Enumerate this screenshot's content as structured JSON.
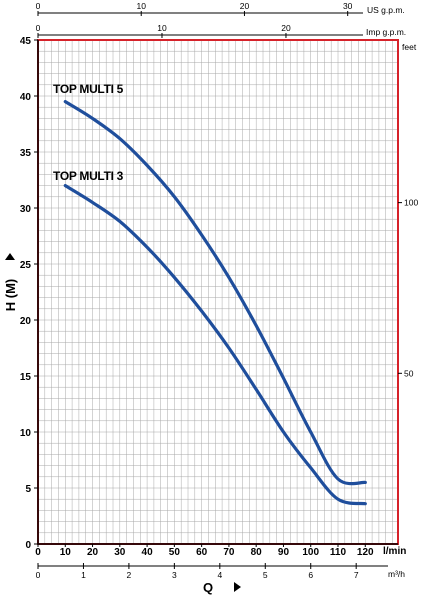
{
  "chart_data": {
    "type": "line",
    "x": {
      "unit": "l/min",
      "min": 0,
      "max": 120,
      "ticks": [
        0,
        10,
        20,
        30,
        40,
        50,
        60,
        70,
        80,
        90,
        100,
        110,
        120
      ]
    },
    "y": {
      "unit": "H (M)",
      "min": 0,
      "max": 45,
      "ticks": [
        0,
        5,
        10,
        15,
        20,
        25,
        30,
        35,
        40,
        45
      ]
    },
    "ylabel": "H (M)",
    "xlabel": "Q",
    "secondary_axes": {
      "top_us": {
        "unit": "US g.p.m.",
        "ticks": [
          0,
          10,
          20,
          30
        ]
      },
      "top_imp": {
        "unit": "Imp g.p.m.",
        "ticks": [
          0,
          10,
          20
        ]
      },
      "bottom_m3h": {
        "unit": "m³/h",
        "ticks": [
          0,
          1,
          2,
          3,
          4,
          5,
          6,
          7
        ]
      },
      "right_feet": {
        "unit": "feet",
        "ticks": [
          50,
          100
        ]
      }
    },
    "grid": true,
    "series": [
      {
        "name": "TOP MULTI 5",
        "color": "#1f4e9c",
        "points": [
          [
            10,
            39.5
          ],
          [
            20,
            38
          ],
          [
            30,
            36.2
          ],
          [
            40,
            33.8
          ],
          [
            50,
            31
          ],
          [
            60,
            27.6
          ],
          [
            70,
            23.8
          ],
          [
            80,
            19.5
          ],
          [
            90,
            14.8
          ],
          [
            100,
            10
          ],
          [
            110,
            5.8
          ],
          [
            120,
            5.5
          ]
        ]
      },
      {
        "name": "TOP MULTI 3",
        "color": "#1f4e9c",
        "points": [
          [
            10,
            32
          ],
          [
            20,
            30.5
          ],
          [
            30,
            28.8
          ],
          [
            40,
            26.5
          ],
          [
            50,
            23.8
          ],
          [
            60,
            20.8
          ],
          [
            70,
            17.5
          ],
          [
            80,
            13.8
          ],
          [
            90,
            10
          ],
          [
            100,
            6.8
          ],
          [
            110,
            4
          ],
          [
            120,
            3.6
          ]
        ]
      }
    ]
  },
  "labels": {
    "x_unit": "l/min",
    "us_unit": "US g.p.m.",
    "imp_unit": "Imp g.p.m.",
    "m3h_unit": "m³/h",
    "feet_unit": "feet",
    "y_title": "H (M)",
    "x_title": "Q",
    "series_a": "TOP MULTI 5",
    "series_b": "TOP MULTI 3"
  },
  "colors": {
    "frame": "#d6222a",
    "curve": "#1f4e9c",
    "grid": "#a8a8a8"
  }
}
